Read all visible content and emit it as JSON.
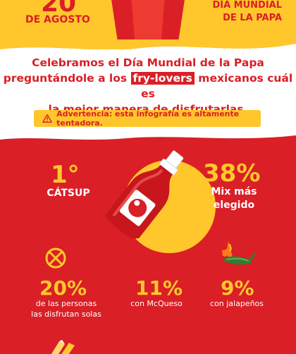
{
  "header": {
    "date_number": "20",
    "date_text": "DE AGOSTO",
    "day_line1": "DÍA MUNDIAL",
    "day_line2": "DE LA PAPA"
  },
  "intro": {
    "line1": "Celebramos el Día Mundial de la Papa",
    "line2_pre": "preguntándole a los ",
    "line2_highlight": "fry-lovers",
    "line2_post": " mexicanos cuál es",
    "line3": "la mejor manera de disfrutarlas."
  },
  "warning": {
    "icon": "warning-triangle-icon",
    "text": "Advertencia: esta infografía es altamente tentadora."
  },
  "top_stats": {
    "rank": "1°",
    "rank_label": "CÁTSUP",
    "percent": "38%",
    "percent_label_line1": "Mix más",
    "percent_label_line2": "elegido"
  },
  "bottom_stats": [
    {
      "icon": "cross-circle-icon",
      "value": "20%",
      "label_line1": "de las personas",
      "label_line2": "las disfrutan solas"
    },
    {
      "icon": "",
      "value": "11%",
      "label_line1": "con McQueso",
      "label_line2": ""
    },
    {
      "icon": "jalapeno-icon",
      "value": "9%",
      "label_line1": "con jalapeños",
      "label_line2": ""
    }
  ],
  "colors": {
    "red": "#da1f26",
    "yellow": "#ffc72c",
    "white": "#ffffff",
    "jalapeno_green": "#2f7d32"
  }
}
